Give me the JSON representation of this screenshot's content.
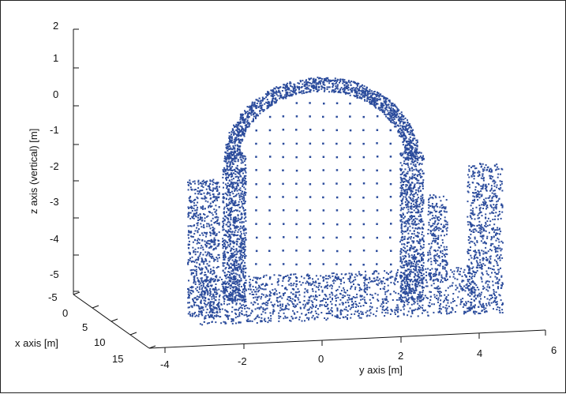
{
  "chart_data": {
    "type": "scatter",
    "projection": "3d",
    "title": "",
    "xlabel": "x axis [m]",
    "ylabel": "y axis [m]",
    "zlabel": "z axis (vertical) [m]",
    "x_ticks": [
      "-5",
      "0",
      "5",
      "10",
      "15"
    ],
    "y_ticks": [
      "-4",
      "-2",
      "0",
      "2",
      "4",
      "6"
    ],
    "z_ticks": [
      "2",
      "1",
      "0",
      "-1",
      "-2",
      "-3",
      "-4",
      "-5"
    ],
    "xlim": [
      -5,
      15
    ],
    "ylim": [
      -4,
      6
    ],
    "zlim": [
      -5,
      2
    ],
    "grid": false,
    "marker_color": "#2c4c9c",
    "series": [
      {
        "description_note": "",
        "values": []
      }
    ]
  }
}
